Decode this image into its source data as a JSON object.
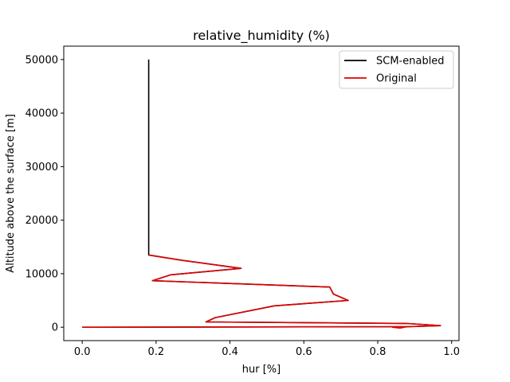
{
  "chart_data": {
    "type": "line",
    "title": "relative_humidity (%)",
    "xlabel": "hur [%]",
    "ylabel": "Altitude above the surface [m]",
    "xlim": [
      -0.05,
      1.02
    ],
    "ylim": [
      -2500,
      52500
    ],
    "xticks": [
      "0.0",
      "0.2",
      "0.4",
      "0.6",
      "0.8",
      "1.0"
    ],
    "xtick_values": [
      0.0,
      0.2,
      0.4,
      0.6,
      0.8,
      1.0
    ],
    "yticks": [
      "0",
      "10000",
      "20000",
      "30000",
      "40000",
      "50000"
    ],
    "ytick_values": [
      0,
      10000,
      20000,
      30000,
      40000,
      50000
    ],
    "grid": false,
    "legend_position": "top-right",
    "series": [
      {
        "name": "SCM-enabled",
        "color": "#000000",
        "points": [
          [
            0.18,
            50000
          ],
          [
            0.18,
            13500
          ],
          [
            0.27,
            12500
          ],
          [
            0.43,
            11000
          ],
          [
            0.24,
            9800
          ],
          [
            0.19,
            8700
          ],
          [
            0.67,
            7500
          ],
          [
            0.68,
            6200
          ],
          [
            0.72,
            5000
          ],
          [
            0.52,
            4000
          ],
          [
            0.36,
            1800
          ],
          [
            0.335,
            1000
          ],
          [
            0.88,
            700
          ],
          [
            0.97,
            300
          ],
          [
            0.88,
            100
          ],
          [
            0.0,
            0
          ]
        ]
      },
      {
        "name": "Original",
        "color": "#e00000",
        "points": [
          [
            0.18,
            13500
          ],
          [
            0.27,
            12500
          ],
          [
            0.43,
            11000
          ],
          [
            0.24,
            9800
          ],
          [
            0.19,
            8700
          ],
          [
            0.67,
            7500
          ],
          [
            0.68,
            6200
          ],
          [
            0.72,
            5000
          ],
          [
            0.52,
            4000
          ],
          [
            0.36,
            1800
          ],
          [
            0.335,
            1000
          ],
          [
            0.88,
            700
          ],
          [
            0.97,
            300
          ],
          [
            0.84,
            0
          ],
          [
            0.86,
            -150
          ],
          [
            0.88,
            100
          ],
          [
            0.0,
            0
          ]
        ]
      }
    ]
  }
}
